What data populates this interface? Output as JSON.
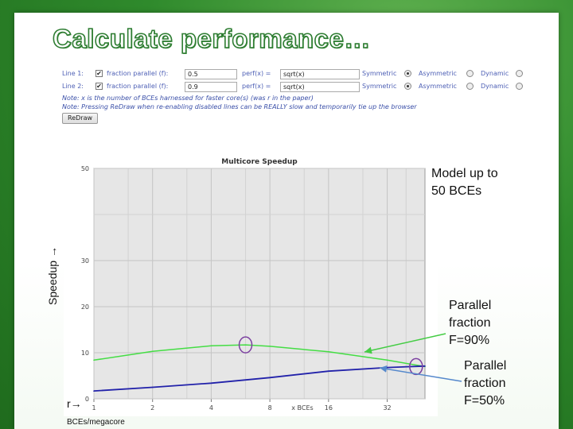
{
  "slide": {
    "title": "Calculate performance…"
  },
  "form": {
    "lines": [
      {
        "label": "Line 1:",
        "checked": true,
        "f_label": "fraction parallel (f):",
        "f_value": "0.5",
        "perf_label": "perf(x) =",
        "perf_value": "sqrt(x)",
        "opt_symmetric": "Symmetric",
        "opt_asymmetric": "Asymmetric",
        "opt_dynamic": "Dynamic"
      },
      {
        "label": "Line 2:",
        "checked": true,
        "f_label": "fraction parallel (f):",
        "f_value": "0.9",
        "perf_label": "perf(x) =",
        "perf_value": "sqrt(x)",
        "opt_symmetric": "Symmetric",
        "opt_asymmetric": "Asymmetric",
        "opt_dynamic": "Dynamic"
      }
    ],
    "note1": "Note: x is the number of BCEs harnessed for faster core(s) (was r in the paper)",
    "note2": "Note: Pressing ReDraw when re-enabling disabled lines can be REALLY slow and temporarily tie up the browser",
    "redraw_label": "ReDraw"
  },
  "annotations": {
    "ylabel": "Speedup →",
    "model_line1": "Model up to",
    "model_line2": "50 BCEs",
    "p90_line1": "Parallel",
    "p90_line2": "fraction",
    "p90_line3": "F=90%",
    "p50_line1": "Parallel",
    "p50_line2": "fraction",
    "p50_line3": "F=50%",
    "r_label": "r→",
    "bce_sub": "BCEs/megacore"
  },
  "colors": {
    "f90": "#44dd44",
    "f50": "#2222aa",
    "marker": "#7b3fa0",
    "arrow_green": "#44cc44",
    "arrow_blue": "#5588cc"
  },
  "chart_data": {
    "type": "line",
    "title": "Multicore Speedup",
    "xlabel": "x BCEs",
    "ylabel": "",
    "x_scale": "log2",
    "x_ticks": [
      "1",
      "2",
      "4",
      "8",
      "16",
      "32"
    ],
    "x_tick_values": [
      1,
      2,
      4,
      8,
      16,
      32
    ],
    "y_ticks": [
      "0",
      "10",
      "20",
      "30",
      "50"
    ],
    "y_tick_values": [
      0,
      10,
      20,
      30,
      50
    ],
    "ylim": [
      0,
      50
    ],
    "xlim": [
      1,
      50
    ],
    "grid": true,
    "series": [
      {
        "name": "F=90%",
        "x": [
          1,
          2,
          4,
          6,
          8,
          16,
          32,
          50
        ],
        "y": [
          8.4,
          10.3,
          11.5,
          11.7,
          11.4,
          10.2,
          8.4,
          7.0
        ]
      },
      {
        "name": "F=50%",
        "x": [
          1,
          2,
          4,
          8,
          16,
          32,
          50
        ],
        "y": [
          1.7,
          2.5,
          3.4,
          4.6,
          6.0,
          6.8,
          7.1
        ]
      }
    ],
    "highlights": [
      {
        "x": 6,
        "y": 11.7
      },
      {
        "x": 45,
        "y": 7.0
      }
    ]
  }
}
